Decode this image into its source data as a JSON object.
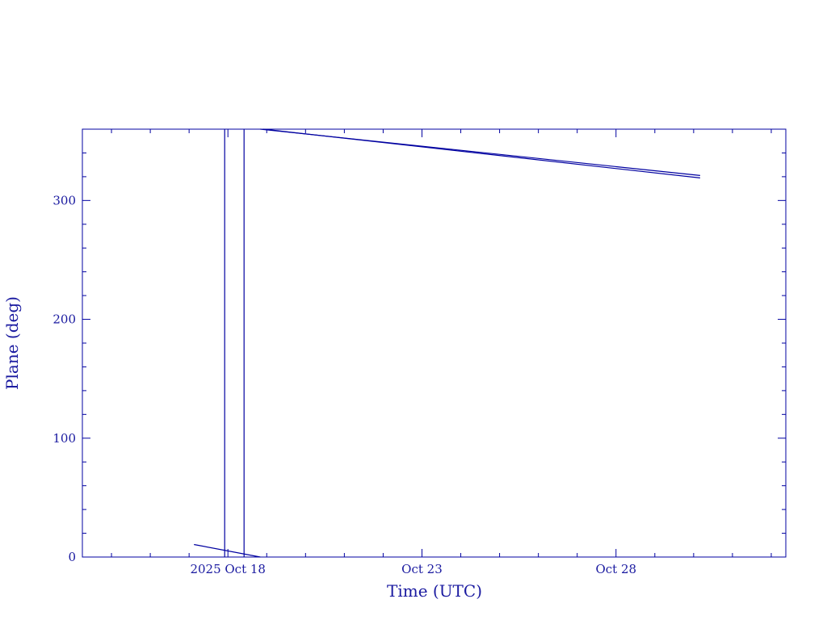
{
  "chart_data": {
    "type": "line",
    "color": "#0000a0",
    "xlabel": "Time (UTC)",
    "ylabel": "Plane (deg)",
    "xlim": [
      "2025-10-14T06:00",
      "2025-11-01T09:00"
    ],
    "ylim": [
      0,
      360
    ],
    "grid": false,
    "legend": "none",
    "x_ticks": [
      {
        "at": "2025-10-18T00:00",
        "label": "2025 Oct 18"
      },
      {
        "at": "2025-10-23T00:00",
        "label": "Oct 23"
      },
      {
        "at": "2025-10-28T00:00",
        "label": "Oct 28"
      }
    ],
    "y_ticks": [
      0,
      100,
      200,
      300
    ],
    "series": [
      {
        "x": [
          "2025-10-17T03:00",
          "2025-10-18T20:00"
        ],
        "y": [
          10.5,
          0
        ]
      },
      {
        "x": [
          "2025-10-18T20:00",
          "2025-10-30T04:00"
        ],
        "y": [
          360,
          321
        ]
      },
      {
        "x": [
          "2025-10-18T22:00",
          "2025-10-30T04:00"
        ],
        "y": [
          360,
          319
        ]
      },
      {
        "x": [
          "2025-10-17T22:00",
          "2025-10-17T22:00"
        ],
        "y": [
          0,
          360
        ]
      },
      {
        "x": [
          "2025-10-18T10:00",
          "2025-10-18T10:00"
        ],
        "y": [
          0,
          360
        ]
      }
    ]
  }
}
